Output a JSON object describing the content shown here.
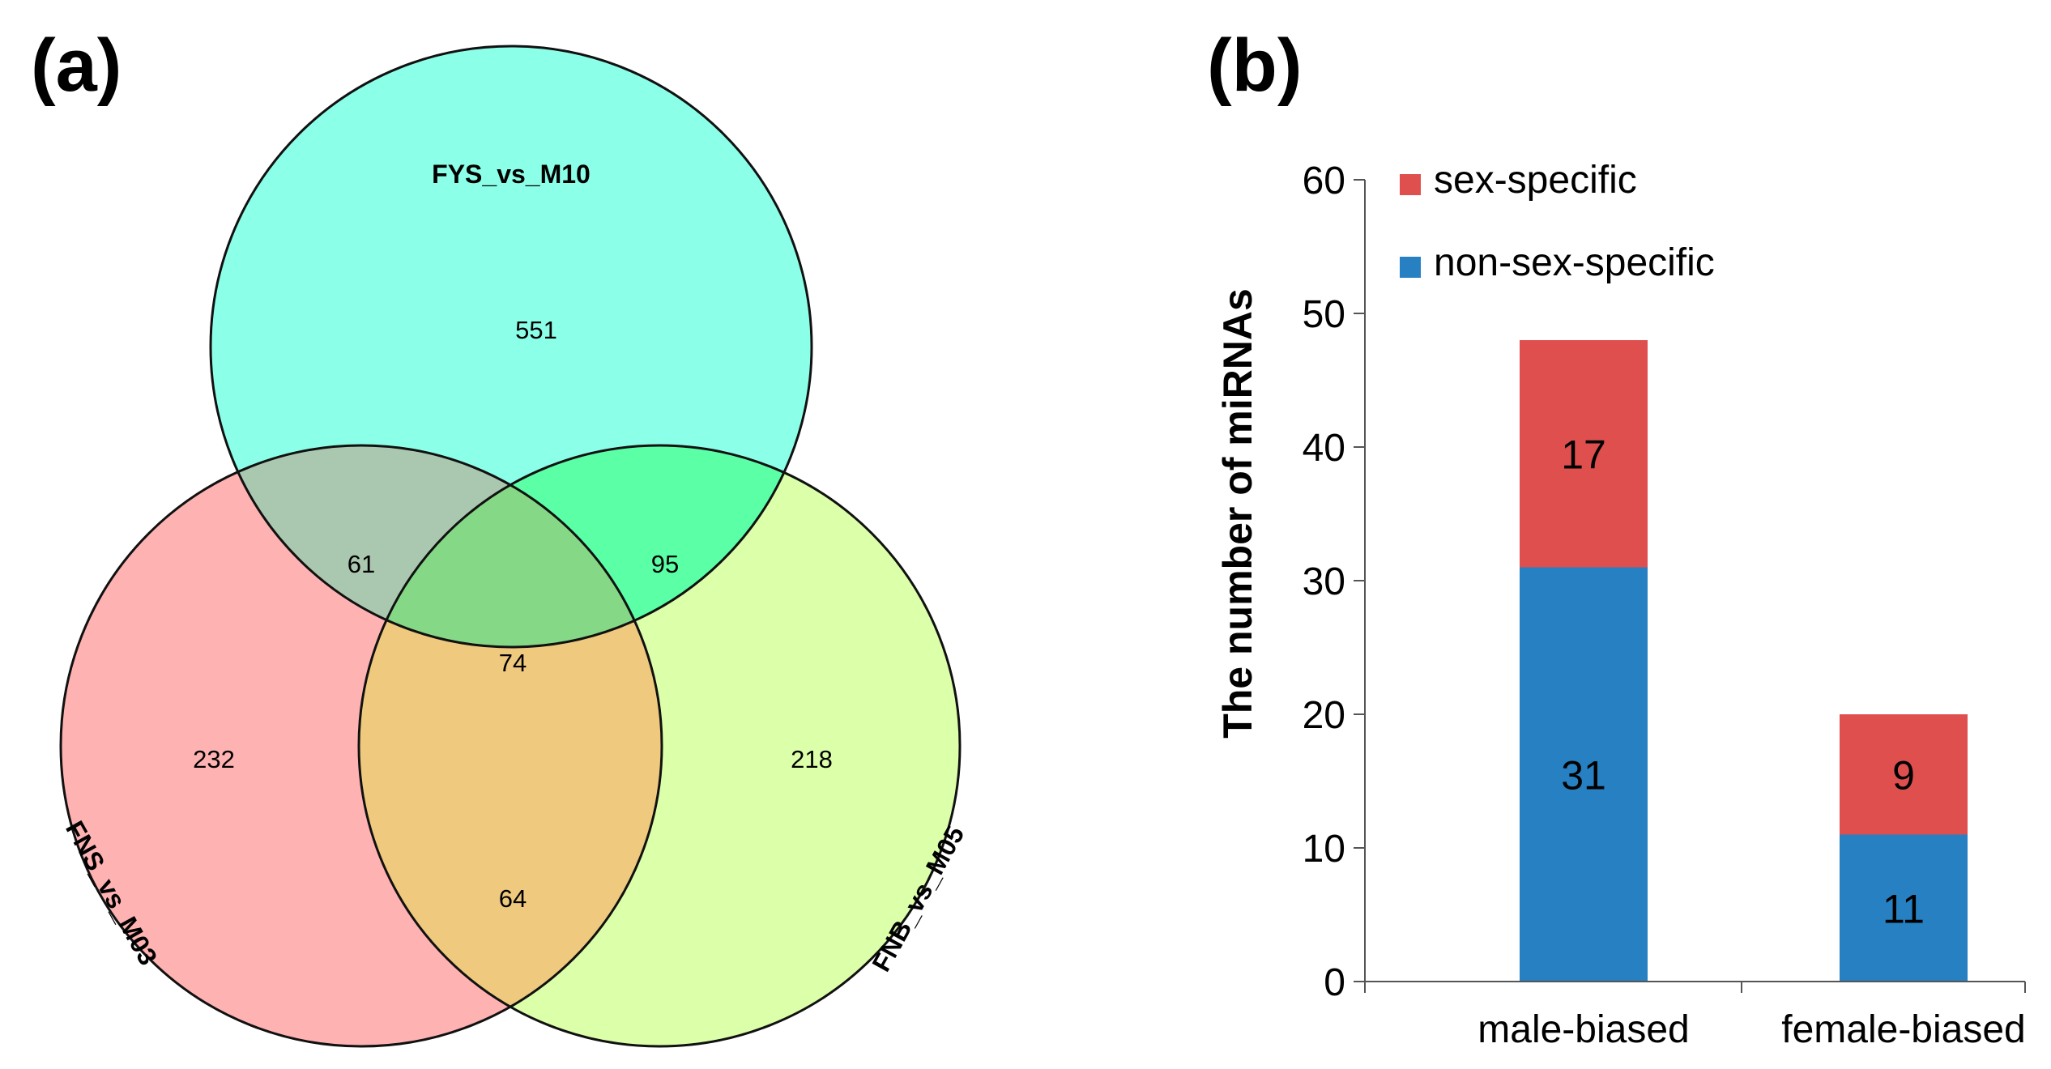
{
  "panel_a": {
    "label": "(a)",
    "chart_type": "venn",
    "sets": [
      {
        "name": "FYS_vs_M10",
        "color": "#8cffe8"
      },
      {
        "name": "FNS_vs_M03",
        "color": "#ffb2b2"
      },
      {
        "name": "FNB_vs_M05",
        "color": "#dcffaa"
      }
    ],
    "regions": {
      "fys_only": "551",
      "fns_only": "232",
      "fnb_only": "218",
      "fys_fns": "61",
      "fys_fnb": "95",
      "fns_fnb": "64",
      "all": "74"
    },
    "overlap_colors": {
      "fys_fns": "#aac8b0",
      "fys_fnb": "#5affa6",
      "fns_fnb": "#eec97e",
      "all": "#85d986"
    }
  },
  "panel_b": {
    "label": "(b)"
  },
  "chart_data": {
    "type": "bar",
    "stacked": true,
    "categories": [
      "male-biased",
      "female-biased"
    ],
    "series": [
      {
        "name": "non-sex-specific",
        "color": "#2680c2",
        "values": [
          31,
          11
        ]
      },
      {
        "name": "sex-specific",
        "color": "#df4f4e",
        "values": [
          17,
          9
        ]
      }
    ],
    "legend_order": [
      "sex-specific",
      "non-sex-specific"
    ],
    "title": "",
    "xlabel": "",
    "ylabel": "The number of miRNAs",
    "ylim": [
      0,
      60
    ],
    "yticks": [
      0,
      10,
      20,
      30,
      40,
      50,
      60
    ],
    "legend_position": "top-left"
  }
}
